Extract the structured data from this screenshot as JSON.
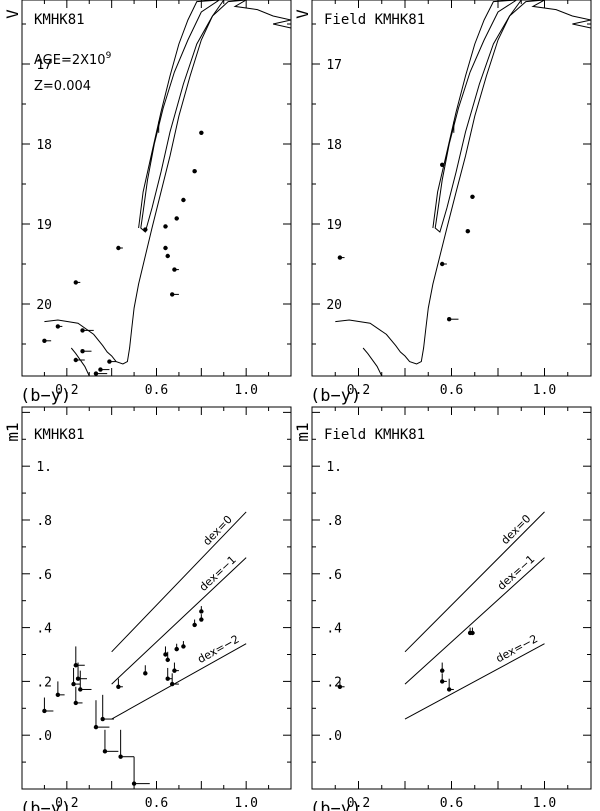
{
  "chart_data": [
    {
      "type": "scatter",
      "title": "KMHK81",
      "annotations": [
        {
          "prefix": "AGE=2X10",
          "sup": "9"
        },
        {
          "text": "Z=0.004"
        }
      ],
      "xlabel": "(b−y)",
      "ylabel": "V",
      "xlim": [
        0.0,
        1.2
      ],
      "ylim": [
        20.9,
        16.2
      ],
      "y_inverted": true,
      "xticks": [
        0.2,
        0.6,
        1.0
      ],
      "xtick_labels": [
        "0.2",
        "0.6",
        "1.0"
      ],
      "yticks": [
        17,
        18,
        19,
        20
      ],
      "ytick_labels": [
        "17",
        "18",
        "19",
        "20"
      ],
      "points": [
        {
          "x": 0.8,
          "y": 17.86,
          "xerr": 0.01
        },
        {
          "x": 0.77,
          "y": 18.34,
          "xerr": 0.01
        },
        {
          "x": 0.72,
          "y": 18.7,
          "xerr": 0.01
        },
        {
          "x": 0.69,
          "y": 18.93,
          "xerr": 0.01
        },
        {
          "x": 0.64,
          "y": 19.03,
          "xerr": 0.01
        },
        {
          "x": 0.55,
          "y": 19.07,
          "xerr": 0.01
        },
        {
          "x": 0.43,
          "y": 19.3,
          "xerr": 0.02
        },
        {
          "x": 0.64,
          "y": 19.3,
          "xerr": 0.01
        },
        {
          "x": 0.65,
          "y": 19.4,
          "xerr": 0.01
        },
        {
          "x": 0.68,
          "y": 19.57,
          "xerr": 0.02
        },
        {
          "x": 0.24,
          "y": 19.73,
          "xerr": 0.02
        },
        {
          "x": 0.67,
          "y": 19.88,
          "xerr": 0.03
        },
        {
          "x": 0.16,
          "y": 20.28,
          "xerr": 0.02
        },
        {
          "x": 0.27,
          "y": 20.33,
          "xerr": 0.05
        },
        {
          "x": 0.1,
          "y": 20.46,
          "xerr": 0.03
        },
        {
          "x": 0.27,
          "y": 20.59,
          "xerr": 0.04
        },
        {
          "x": 0.24,
          "y": 20.7,
          "xerr": 0.04
        },
        {
          "x": 0.39,
          "y": 20.72,
          "xerr": 0.03
        },
        {
          "x": 0.35,
          "y": 20.82,
          "xerr": 0.04
        },
        {
          "x": 0.33,
          "y": 20.87,
          "xerr": 0.05
        }
      ],
      "isochrone": [
        [
          0.1,
          20.22
        ],
        [
          0.16,
          20.2
        ],
        [
          0.25,
          20.24
        ],
        [
          0.32,
          20.38
        ],
        [
          0.36,
          20.52
        ],
        [
          0.38,
          20.6
        ],
        [
          0.4,
          20.65
        ],
        [
          0.42,
          20.72
        ],
        [
          0.45,
          20.75
        ],
        [
          0.47,
          20.72
        ],
        [
          0.48,
          20.55
        ],
        [
          0.49,
          20.3
        ],
        [
          0.5,
          20.05
        ],
        [
          0.52,
          19.75
        ],
        [
          0.55,
          19.4
        ],
        [
          0.58,
          19.05
        ],
        [
          0.62,
          18.6
        ],
        [
          0.66,
          18.15
        ],
        [
          0.7,
          17.65
        ],
        [
          0.75,
          17.15
        ],
        [
          0.8,
          16.7
        ],
        [
          0.85,
          16.4
        ],
        [
          0.9,
          16.2
        ]
      ],
      "isochrone_rgb": [
        [
          0.52,
          19.05
        ],
        [
          0.54,
          18.6
        ],
        [
          0.58,
          18.1
        ],
        [
          0.62,
          17.6
        ],
        [
          0.66,
          17.15
        ],
        [
          0.7,
          16.75
        ],
        [
          0.74,
          16.45
        ],
        [
          0.78,
          16.22
        ],
        [
          0.88,
          16.2
        ],
        [
          0.8,
          16.35
        ],
        [
          0.74,
          16.7
        ],
        [
          0.68,
          17.1
        ],
        [
          0.63,
          17.55
        ],
        [
          0.59,
          18.0
        ],
        [
          0.56,
          18.45
        ],
        [
          0.54,
          18.85
        ],
        [
          0.53,
          19.05
        ],
        [
          0.55,
          19.1
        ],
        [
          0.58,
          18.8
        ],
        [
          0.62,
          18.35
        ],
        [
          0.66,
          17.85
        ],
        [
          0.72,
          17.25
        ],
        [
          0.78,
          16.75
        ],
        [
          0.85,
          16.4
        ],
        [
          0.92,
          16.22
        ],
        [
          1.0,
          16.2
        ],
        [
          0.95,
          16.28
        ],
        [
          1.05,
          16.32
        ],
        [
          1.12,
          16.4
        ],
        [
          1.2,
          16.45
        ],
        [
          1.12,
          16.5
        ],
        [
          1.2,
          16.55
        ]
      ],
      "isochrone_tail": [
        [
          0.3,
          20.9
        ],
        [
          0.28,
          20.78
        ],
        [
          0.24,
          20.62
        ],
        [
          0.22,
          20.55
        ]
      ],
      "isochrone_tick": [
        [
          0.61,
          17.72
        ],
        [
          0.61,
          17.86
        ]
      ]
    },
    {
      "type": "scatter",
      "title": "Field KMHK81",
      "xlabel": "(b−y)",
      "ylabel": "V",
      "xlim": [
        0.0,
        1.2
      ],
      "ylim": [
        20.9,
        16.2
      ],
      "y_inverted": true,
      "xticks": [
        0.2,
        0.6,
        1.0
      ],
      "xtick_labels": [
        "0.2",
        "0.6",
        "1.0"
      ],
      "yticks": [
        17,
        18,
        19,
        20
      ],
      "ytick_labels": [
        "17",
        "18",
        "19",
        "20"
      ],
      "points": [
        {
          "x": 0.56,
          "y": 18.26,
          "xerr": 0.01
        },
        {
          "x": 0.69,
          "y": 18.66,
          "xerr": 0.01
        },
        {
          "x": 0.67,
          "y": 19.09,
          "xerr": 0.01
        },
        {
          "x": 0.12,
          "y": 19.42,
          "xerr": 0.02
        },
        {
          "x": 0.56,
          "y": 19.5,
          "xerr": 0.02
        },
        {
          "x": 0.59,
          "y": 20.19,
          "xerr": 0.04
        }
      ],
      "isochrone": [
        [
          0.1,
          20.22
        ],
        [
          0.16,
          20.2
        ],
        [
          0.25,
          20.24
        ],
        [
          0.32,
          20.38
        ],
        [
          0.36,
          20.52
        ],
        [
          0.38,
          20.6
        ],
        [
          0.4,
          20.65
        ],
        [
          0.42,
          20.72
        ],
        [
          0.45,
          20.75
        ],
        [
          0.47,
          20.72
        ],
        [
          0.48,
          20.55
        ],
        [
          0.49,
          20.3
        ],
        [
          0.5,
          20.05
        ],
        [
          0.52,
          19.75
        ],
        [
          0.55,
          19.4
        ],
        [
          0.58,
          19.05
        ],
        [
          0.62,
          18.6
        ],
        [
          0.66,
          18.15
        ],
        [
          0.7,
          17.65
        ],
        [
          0.75,
          17.15
        ],
        [
          0.8,
          16.7
        ],
        [
          0.85,
          16.4
        ],
        [
          0.9,
          16.2
        ]
      ],
      "isochrone_rgb": [
        [
          0.52,
          19.05
        ],
        [
          0.54,
          18.6
        ],
        [
          0.58,
          18.1
        ],
        [
          0.62,
          17.6
        ],
        [
          0.66,
          17.15
        ],
        [
          0.7,
          16.75
        ],
        [
          0.74,
          16.45
        ],
        [
          0.78,
          16.22
        ],
        [
          0.88,
          16.2
        ],
        [
          0.8,
          16.35
        ],
        [
          0.74,
          16.7
        ],
        [
          0.68,
          17.1
        ],
        [
          0.63,
          17.55
        ],
        [
          0.59,
          18.0
        ],
        [
          0.56,
          18.45
        ],
        [
          0.54,
          18.85
        ],
        [
          0.53,
          19.05
        ],
        [
          0.55,
          19.1
        ],
        [
          0.58,
          18.8
        ],
        [
          0.62,
          18.35
        ],
        [
          0.66,
          17.85
        ],
        [
          0.72,
          17.25
        ],
        [
          0.78,
          16.75
        ],
        [
          0.85,
          16.4
        ],
        [
          0.92,
          16.22
        ],
        [
          1.0,
          16.2
        ],
        [
          0.95,
          16.28
        ],
        [
          1.05,
          16.32
        ],
        [
          1.12,
          16.4
        ],
        [
          1.2,
          16.45
        ],
        [
          1.12,
          16.5
        ],
        [
          1.2,
          16.55
        ]
      ],
      "isochrone_tail": [
        [
          0.3,
          20.9
        ],
        [
          0.28,
          20.78
        ],
        [
          0.24,
          20.62
        ],
        [
          0.22,
          20.55
        ]
      ],
      "isochrone_tick": [
        [
          0.61,
          17.72
        ],
        [
          0.61,
          17.86
        ]
      ]
    },
    {
      "type": "scatter",
      "title": "KMHK81",
      "xlabel": "(b−y)",
      "ylabel": "m1",
      "xlim": [
        0.0,
        1.2
      ],
      "ylim": [
        -0.2,
        1.22
      ],
      "xticks": [
        0.2,
        0.6,
        1.0
      ],
      "xtick_labels": [
        "0.2",
        "0.6",
        "1.0"
      ],
      "yticks": [
        0.0,
        0.2,
        0.4,
        0.6,
        0.8,
        1.0
      ],
      "ytick_labels": [
        ".0",
        ".2",
        ".4",
        ".6",
        ".8",
        "1."
      ],
      "metallicity_lines": [
        {
          "label": "dex=0",
          "x": [
            0.4,
            1.0
          ],
          "y": [
            0.31,
            0.83
          ]
        },
        {
          "label": "dex=−1",
          "x": [
            0.4,
            1.0
          ],
          "y": [
            0.19,
            0.66
          ]
        },
        {
          "label": "dex=−2",
          "x": [
            0.4,
            1.0
          ],
          "y": [
            0.06,
            0.34
          ]
        }
      ],
      "points": [
        {
          "x": 0.8,
          "y": 0.46,
          "xerr": 0.01,
          "yerr": 0.02
        },
        {
          "x": 0.8,
          "y": 0.43,
          "xerr": 0.01,
          "yerr": 0.02
        },
        {
          "x": 0.77,
          "y": 0.41,
          "xerr": 0.01,
          "yerr": 0.02
        },
        {
          "x": 0.72,
          "y": 0.33,
          "xerr": 0.01,
          "yerr": 0.02
        },
        {
          "x": 0.69,
          "y": 0.32,
          "xerr": 0.01,
          "yerr": 0.02
        },
        {
          "x": 0.64,
          "y": 0.3,
          "xerr": 0.01,
          "yerr": 0.03
        },
        {
          "x": 0.65,
          "y": 0.28,
          "xerr": 0.01,
          "yerr": 0.03
        },
        {
          "x": 0.68,
          "y": 0.24,
          "xerr": 0.02,
          "yerr": 0.03
        },
        {
          "x": 0.55,
          "y": 0.23,
          "xerr": 0.01,
          "yerr": 0.03
        },
        {
          "x": 0.65,
          "y": 0.21,
          "xerr": 0.02,
          "yerr": 0.04
        },
        {
          "x": 0.67,
          "y": 0.19,
          "xerr": 0.03,
          "yerr": 0.04
        },
        {
          "x": 0.43,
          "y": 0.18,
          "xerr": 0.02,
          "yerr": 0.03
        },
        {
          "x": 0.24,
          "y": 0.26,
          "xerr": 0.04,
          "yerr": 0.07
        },
        {
          "x": 0.25,
          "y": 0.21,
          "xerr": 0.04,
          "yerr": 0.06
        },
        {
          "x": 0.23,
          "y": 0.19,
          "xerr": 0.03,
          "yerr": 0.06
        },
        {
          "x": 0.26,
          "y": 0.17,
          "xerr": 0.05,
          "yerr": 0.07
        },
        {
          "x": 0.16,
          "y": 0.15,
          "xerr": 0.03,
          "yerr": 0.05
        },
        {
          "x": 0.24,
          "y": 0.12,
          "xerr": 0.03,
          "yerr": 0.06
        },
        {
          "x": 0.1,
          "y": 0.09,
          "xerr": 0.04,
          "yerr": 0.05
        },
        {
          "x": 0.36,
          "y": 0.06,
          "xerr": 0.05,
          "yerr": 0.09
        },
        {
          "x": 0.33,
          "y": 0.03,
          "xerr": 0.06,
          "yerr": 0.1
        },
        {
          "x": 0.37,
          "y": -0.06,
          "xerr": 0.06,
          "yerr": 0.08
        },
        {
          "x": 0.44,
          "y": -0.08,
          "xerr": 0.06,
          "yerr": 0.1
        },
        {
          "x": 0.5,
          "y": -0.18,
          "xerr": 0.07,
          "yerr": 0.1
        }
      ]
    },
    {
      "type": "scatter",
      "title": "Field KMHK81",
      "xlabel": "(b−y)",
      "ylabel": "m1",
      "xlim": [
        0.0,
        1.2
      ],
      "ylim": [
        -0.2,
        1.22
      ],
      "xticks": [
        0.2,
        0.6,
        1.0
      ],
      "xtick_labels": [
        "0.2",
        "0.6",
        "1.0"
      ],
      "yticks": [
        0.0,
        0.2,
        0.4,
        0.6,
        0.8,
        1.0
      ],
      "ytick_labels": [
        ".0",
        ".2",
        ".4",
        ".6",
        ".8",
        "1."
      ],
      "metallicity_lines": [
        {
          "label": "dex=0",
          "x": [
            0.4,
            1.0
          ],
          "y": [
            0.31,
            0.83
          ]
        },
        {
          "label": "dex=−1",
          "x": [
            0.4,
            1.0
          ],
          "y": [
            0.19,
            0.66
          ]
        },
        {
          "label": "dex=−2",
          "x": [
            0.4,
            1.0
          ],
          "y": [
            0.06,
            0.34
          ]
        }
      ],
      "points": [
        {
          "x": 0.68,
          "y": 0.38,
          "xerr": 0.01,
          "yerr": 0.02
        },
        {
          "x": 0.69,
          "y": 0.38,
          "xerr": 0.01,
          "yerr": 0.02
        },
        {
          "x": 0.56,
          "y": 0.24,
          "xerr": 0.01,
          "yerr": 0.03
        },
        {
          "x": 0.56,
          "y": 0.2,
          "xerr": 0.02,
          "yerr": 0.03
        },
        {
          "x": 0.59,
          "y": 0.17,
          "xerr": 0.02,
          "yerr": 0.04
        },
        {
          "x": 0.12,
          "y": 0.18,
          "xerr": 0.02,
          "yerr": 0.02
        }
      ]
    }
  ]
}
